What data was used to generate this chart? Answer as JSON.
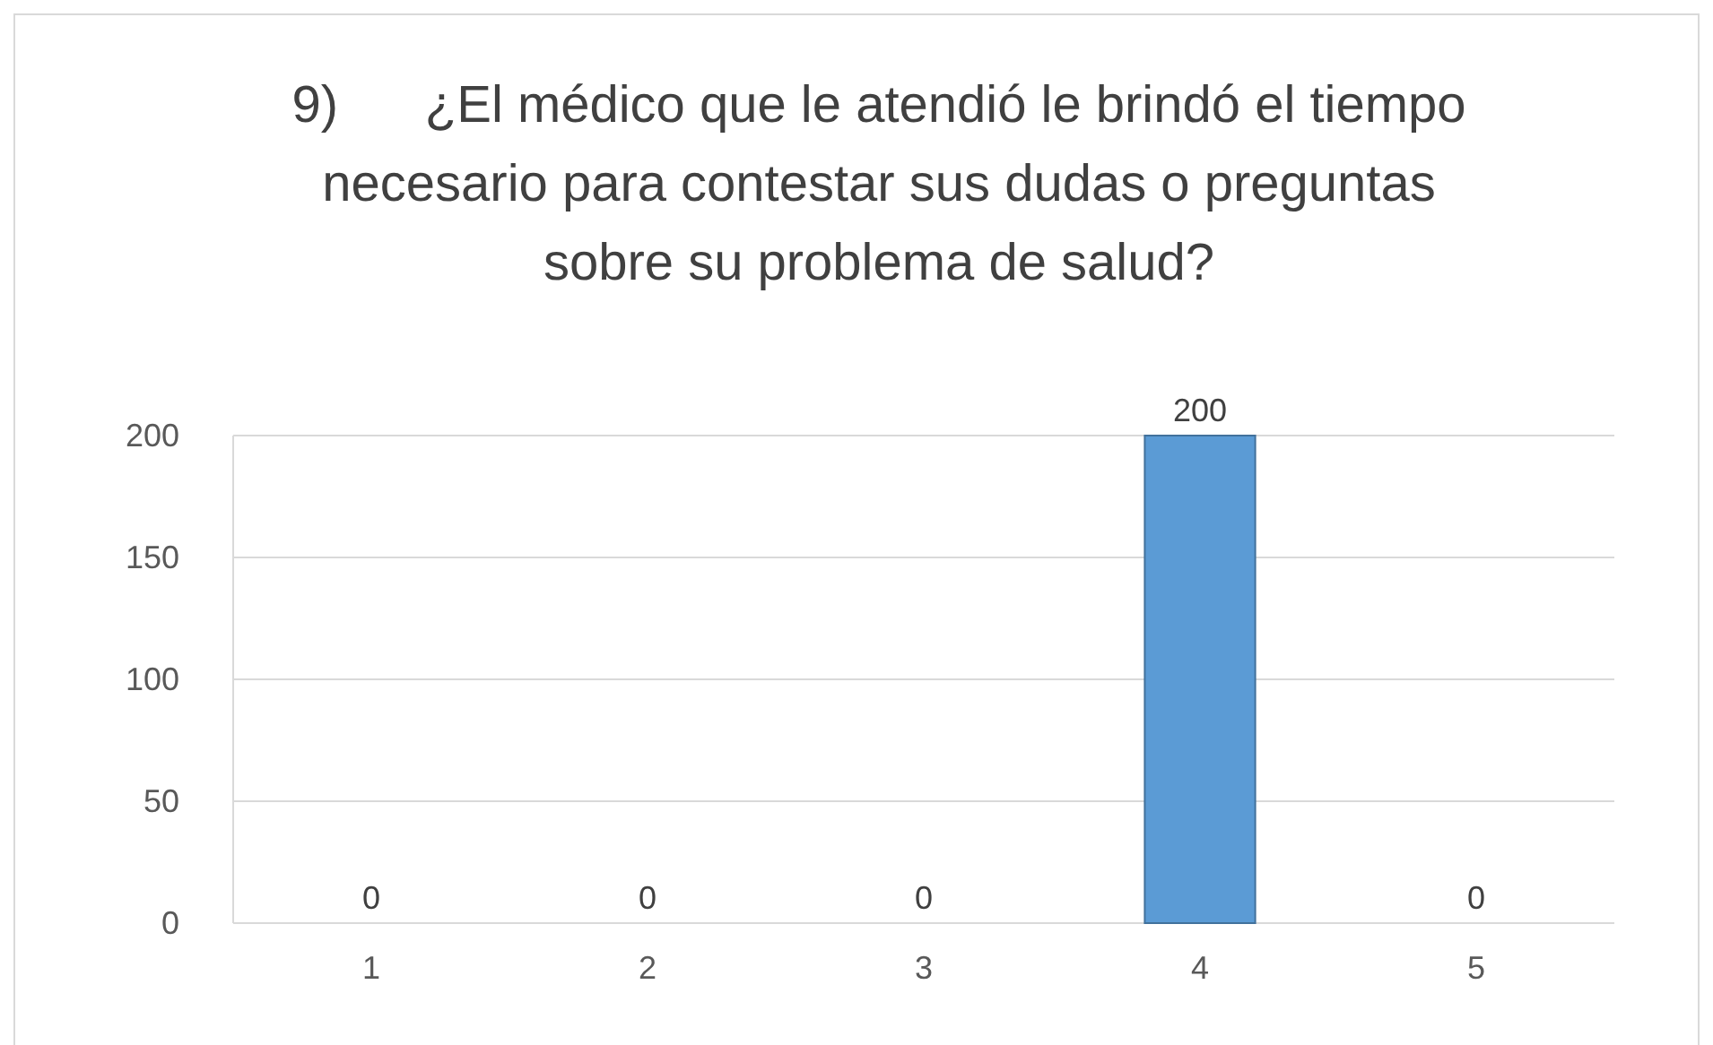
{
  "chart_data": {
    "type": "bar",
    "title": "9)      ¿El médico que le atendió le brindó el tiempo necesario para contestar sus dudas o preguntas sobre su problema de salud?",
    "categories": [
      "1",
      "2",
      "3",
      "4",
      "5"
    ],
    "values": [
      0,
      0,
      0,
      200,
      0
    ],
    "color": "#5b9bd5",
    "ylim": [
      0,
      200
    ],
    "yticks": [
      0,
      50,
      100,
      150,
      200
    ],
    "grid": "y",
    "data_labels": true
  }
}
